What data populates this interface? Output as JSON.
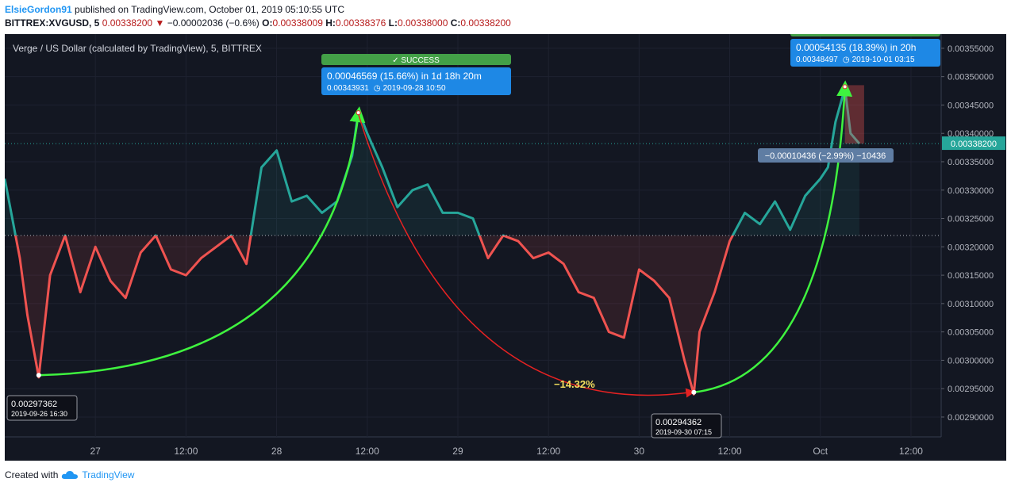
{
  "header": {
    "author": "ElsieGordon91",
    "published": "published on TradingView.com, October 01, 2019 05:10:55 UTC",
    "symbol": "BITTREX:XVGUSD, 5",
    "last": "0.00338200",
    "change": "−0.00002036 (−0.6%)",
    "o_label": "O:",
    "o": "0.00338009",
    "h_label": "H:",
    "h": "0.00338376",
    "l_label": "L:",
    "l": "0.00338000",
    "c_label": "C:",
    "c": "0.00338200"
  },
  "footer": {
    "created_with": "Created with",
    "brand": "TradingView"
  },
  "colors": {
    "background": "#131722",
    "teal": "#26a69a",
    "salmon": "#ef5350",
    "green_arrow": "#3ff33f",
    "red_arrow": "#e52222",
    "blue_label": "#1e88e5",
    "success_green": "#43a047"
  },
  "chart_data": {
    "type": "line",
    "title": "Verge / US Dollar (calculated by TradingView), 5, BITTREX",
    "baseline": 0.00322,
    "current_price": 0.003382,
    "current_price_label": "0.00338200",
    "ylim": [
      0.002865,
      0.003575
    ],
    "y_ticks": [
      0.0029,
      0.00295,
      0.003,
      0.00305,
      0.0031,
      0.00315,
      0.0032,
      0.00325,
      0.0033,
      0.00335,
      0.0034,
      0.00345,
      0.0035,
      0.00355
    ],
    "y_tick_labels": [
      "0.00290000",
      "0.00295000",
      "0.00300000",
      "0.00305000",
      "0.00310000",
      "0.00315000",
      "0.00320000",
      "0.00325000",
      "0.00330000",
      "0.00335000",
      "0.00340000",
      "0.00345000",
      "0.00350000",
      "0.00355000"
    ],
    "x_start": "2019-09-26 12:00",
    "x_end": "2019-10-01 16:00",
    "x_ticks": [
      {
        "t": "2019-09-27 00:00",
        "label": "27"
      },
      {
        "t": "2019-09-27 12:00",
        "label": "12:00"
      },
      {
        "t": "2019-09-28 00:00",
        "label": "28"
      },
      {
        "t": "2019-09-28 12:00",
        "label": "12:00"
      },
      {
        "t": "2019-09-29 00:00",
        "label": "29"
      },
      {
        "t": "2019-09-29 12:00",
        "label": "12:00"
      },
      {
        "t": "2019-09-30 00:00",
        "label": "30"
      },
      {
        "t": "2019-09-30 12:00",
        "label": "12:00"
      },
      {
        "t": "2019-10-01 00:00",
        "label": "Oct"
      },
      {
        "t": "2019-10-01 12:00",
        "label": "12:00"
      }
    ],
    "series": [
      {
        "x": [
          "2019-09-26 12:00",
          "2019-09-26 14:00",
          "2019-09-26 15:00",
          "2019-09-26 16:30",
          "2019-09-26 18:00",
          "2019-09-26 20:00",
          "2019-09-26 22:00",
          "2019-09-27 00:00",
          "2019-09-27 02:00",
          "2019-09-27 04:00",
          "2019-09-27 06:00",
          "2019-09-27 08:00",
          "2019-09-27 10:00",
          "2019-09-27 12:00",
          "2019-09-27 14:00",
          "2019-09-27 16:00",
          "2019-09-27 18:00",
          "2019-09-27 20:00",
          "2019-09-27 22:00",
          "2019-09-28 00:00",
          "2019-09-28 02:00",
          "2019-09-28 04:00",
          "2019-09-28 06:00",
          "2019-09-28 08:00",
          "2019-09-28 10:00",
          "2019-09-28 10:50",
          "2019-09-28 12:00",
          "2019-09-28 14:00",
          "2019-09-28 16:00",
          "2019-09-28 18:00",
          "2019-09-28 20:00",
          "2019-09-28 22:00",
          "2019-09-29 00:00",
          "2019-09-29 02:00",
          "2019-09-29 04:00",
          "2019-09-29 06:00",
          "2019-09-29 08:00",
          "2019-09-29 10:00",
          "2019-09-29 12:00",
          "2019-09-29 14:00",
          "2019-09-29 16:00",
          "2019-09-29 18:00",
          "2019-09-29 20:00",
          "2019-09-29 22:00",
          "2019-09-30 00:00",
          "2019-09-30 02:00",
          "2019-09-30 04:00",
          "2019-09-30 06:00",
          "2019-09-30 07:15",
          "2019-09-30 08:00",
          "2019-09-30 10:00",
          "2019-09-30 12:00",
          "2019-09-30 14:00",
          "2019-09-30 16:00",
          "2019-09-30 18:00",
          "2019-09-30 20:00",
          "2019-09-30 22:00",
          "2019-10-01 00:00",
          "2019-10-01 01:00",
          "2019-10-01 02:00",
          "2019-10-01 03:15",
          "2019-10-01 04:00",
          "2019-10-01 05:10"
        ],
        "y": [
          0.00332,
          0.00318,
          0.00308,
          0.00297,
          0.00315,
          0.00322,
          0.00312,
          0.0032,
          0.00314,
          0.00311,
          0.00319,
          0.00322,
          0.00316,
          0.00315,
          0.00318,
          0.0032,
          0.00322,
          0.00317,
          0.00334,
          0.00337,
          0.00328,
          0.00329,
          0.00326,
          0.00328,
          0.00336,
          0.00344,
          0.0034,
          0.00334,
          0.00327,
          0.0033,
          0.00331,
          0.00326,
          0.00326,
          0.00325,
          0.00318,
          0.00322,
          0.00321,
          0.00318,
          0.00319,
          0.00317,
          0.00312,
          0.00311,
          0.00305,
          0.00304,
          0.00316,
          0.00314,
          0.00311,
          0.003,
          0.00294,
          0.00305,
          0.00312,
          0.00321,
          0.00326,
          0.00324,
          0.00328,
          0.00323,
          0.00329,
          0.00332,
          0.00334,
          0.00342,
          0.00348,
          0.0034,
          0.003382
        ]
      }
    ],
    "annotations": [
      {
        "price": "0.00297362",
        "time": "2019-09-26 16:30"
      },
      {
        "price": "0.00294362",
        "time": "2019-09-30 07:15"
      },
      {
        "text": "0.00046569 (15.66%) in 1d 18h 20m",
        "sub_price": "0.00343931",
        "sub_time": "2019-09-28  10:50"
      },
      {
        "text": "0.00054135 (18.39%) in 20h",
        "sub_price": "0.00348497",
        "sub_time": "2019-10-01  03:15"
      },
      {
        "text": "−0.00010436 (−2.99%) −10436"
      },
      {
        "text": "−14.32%"
      },
      {
        "text": "SUCCESS"
      }
    ]
  }
}
